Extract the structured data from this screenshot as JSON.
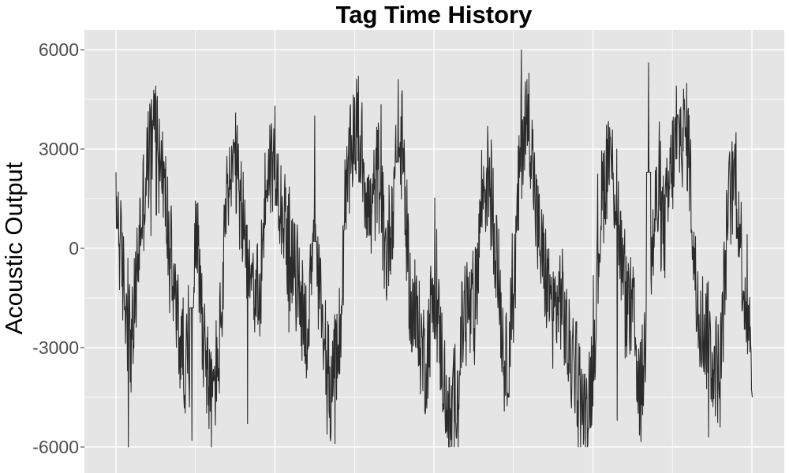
{
  "chart_data": {
    "type": "line",
    "title": "Tag Time History",
    "xlabel": "",
    "ylabel": "Acoustic Output",
    "ylim": [
      -6000,
      6000
    ],
    "yticks": [
      {
        "value": 6000,
        "label": "6000"
      },
      {
        "value": 3000,
        "label": "3000"
      },
      {
        "value": 0,
        "label": "0"
      },
      {
        "value": -3000,
        "label": "-3000"
      },
      {
        "value": -6000,
        "label": "-6000"
      }
    ],
    "xlim": [
      0,
      800
    ],
    "x_gridlines": [
      0,
      200,
      400,
      600,
      800
    ],
    "x_tick_labels": [],
    "grid": true,
    "background": "#e5e5e5",
    "grid_color": "#ffffff",
    "line_color": "#2b2b2b",
    "series": [
      {
        "x": [
          0,
          10,
          20,
          30,
          40,
          50,
          60,
          70,
          80,
          90,
          100,
          110,
          120,
          130,
          140,
          150,
          160,
          170,
          180,
          190,
          200,
          210,
          220,
          230,
          240,
          250,
          260,
          270,
          280,
          290,
          300,
          310,
          320,
          330,
          340,
          350,
          360,
          370,
          380,
          390,
          400,
          410,
          420,
          430,
          440,
          450,
          460,
          470,
          480,
          490,
          500,
          510,
          520,
          530,
          540,
          550,
          560,
          570,
          580,
          590,
          600,
          610,
          620,
          630,
          640,
          650,
          660,
          670,
          680,
          690,
          700,
          710,
          720,
          730,
          740,
          750,
          760,
          770,
          780,
          790,
          800
        ],
        "values": [
          1500,
          -1200,
          -3000,
          500,
          2600,
          3800,
          2000,
          -500,
          -2800,
          -3500,
          1000,
          -2500,
          -4800,
          -3000,
          1500,
          2500,
          700,
          -500,
          -1800,
          2500,
          2500,
          1200,
          -600,
          -1000,
          -2500,
          -400,
          -2200,
          -4200,
          -3500,
          1500,
          3800,
          2800,
          800,
          2400,
          -400,
          1800,
          3200,
          -1500,
          -2500,
          -3500,
          -1000,
          -3300,
          -5500,
          -3800,
          -1500,
          -2400,
          1600,
          2300,
          -500,
          -3800,
          -1700,
          3500,
          4000,
          600,
          -800,
          -2000,
          -1400,
          -3200,
          -3700,
          -5200,
          -3500,
          1200,
          3000,
          1500,
          -1700,
          -2000,
          -4500,
          -1700,
          1500,
          500,
          2600,
          3500,
          3300,
          -1500,
          -2400,
          -3300,
          -3800,
          1200,
          2300,
          -1200,
          -2700
        ],
        "envelope": [
          {
            "x": 0,
            "min": 600,
            "max": 2300
          },
          {
            "x": 15,
            "min": -6000,
            "max": -300
          },
          {
            "x": 50,
            "min": 1000,
            "max": 4900
          },
          {
            "x": 95,
            "min": -5800,
            "max": -1800
          },
          {
            "x": 165,
            "min": -5300,
            "max": 700
          },
          {
            "x": 200,
            "min": 1300,
            "max": 4300
          },
          {
            "x": 250,
            "min": 200,
            "max": 4000
          },
          {
            "x": 275,
            "min": -5900,
            "max": -2000
          },
          {
            "x": 305,
            "min": 2000,
            "max": 5200
          },
          {
            "x": 355,
            "min": 2600,
            "max": 5100
          },
          {
            "x": 430,
            "min": -6000,
            "max": -3700
          },
          {
            "x": 510,
            "min": 1500,
            "max": 6000
          },
          {
            "x": 590,
            "min": -6000,
            "max": -3800
          },
          {
            "x": 630,
            "min": -5200,
            "max": 3000
          },
          {
            "x": 670,
            "min": 2300,
            "max": 5600
          },
          {
            "x": 705,
            "min": 2700,
            "max": 4900
          },
          {
            "x": 745,
            "min": -5700,
            "max": -1000
          },
          {
            "x": 780,
            "min": 300,
            "max": 3500
          },
          {
            "x": 800,
            "min": -4500,
            "max": -900
          }
        ]
      }
    ]
  }
}
